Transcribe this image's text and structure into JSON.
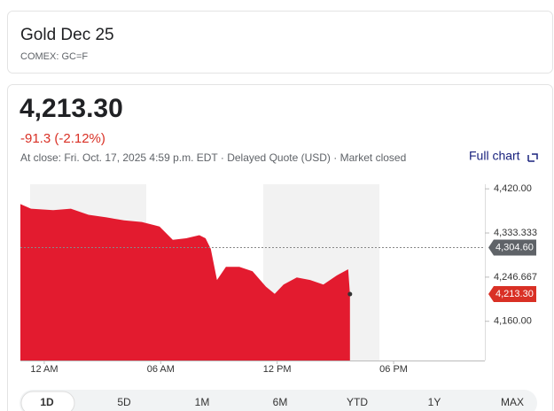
{
  "header": {
    "title": "Gold Dec 25",
    "subtitle": "COMEX: GC=F"
  },
  "quote": {
    "price": "4,213.30",
    "change": "-91.3 (-2.12%)",
    "close_info": "At close: Fri. Oct. 17, 2025 4:59 p.m. EDT · Delayed Quote (USD) · Market closed",
    "link": "Full chart"
  },
  "chart_data": {
    "type": "area",
    "color": "#e31b2f",
    "x": [
      -1.23,
      -0.68,
      0.46,
      1.37,
      2.28,
      3.2,
      4.11,
      5.02,
      5.94,
      6.62,
      7.31,
      7.99,
      8.31,
      8.58,
      8.9,
      9.36,
      10.05,
      10.73,
      11.42,
      11.87,
      12.33,
      13.01,
      13.7,
      14.38,
      15.07,
      15.66,
      15.75
    ],
    "values": [
      4390,
      4381,
      4378,
      4381,
      4369,
      4364,
      4358,
      4355,
      4346,
      4320,
      4323,
      4329,
      4323,
      4302,
      4241,
      4267,
      4267,
      4258,
      4228,
      4214,
      4232,
      4246,
      4241,
      4232,
      4250,
      4262,
      4213.3
    ],
    "xlim": [
      -1.23,
      22.7
    ],
    "ylim": [
      4083,
      4429
    ],
    "xticks": [
      {
        "value": 0,
        "label": "12 AM"
      },
      {
        "value": 6,
        "label": "06 AM"
      },
      {
        "value": 12,
        "label": "12 PM"
      },
      {
        "value": 18,
        "label": "06 PM"
      }
    ],
    "yticks": [
      {
        "value": 4160,
        "label": "4,160.00"
      },
      {
        "value": 4246.667,
        "label": "4,246.667"
      },
      {
        "value": 4333.333,
        "label": "4,333.333"
      },
      {
        "value": 4420,
        "label": "4,420.00"
      }
    ],
    "previous_close": {
      "value": 4304.6,
      "label": "4,304.60"
    },
    "last": {
      "value": 4213.3,
      "label": "4,213.30"
    }
  },
  "tabs": [
    "1D",
    "5D",
    "1M",
    "6M",
    "YTD",
    "1Y",
    "MAX"
  ]
}
